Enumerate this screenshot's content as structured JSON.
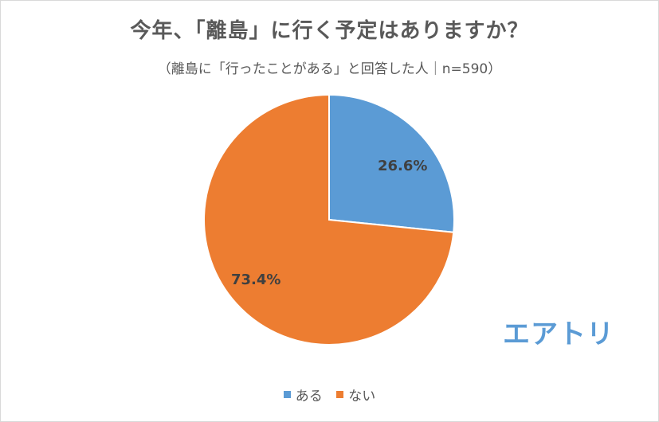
{
  "chart_data": {
    "type": "pie",
    "title": "今年、「離島」に行く予定はありますか？",
    "subtitle": "（離島に「行ったことがある」と回答した人｜n=590）",
    "categories": [
      "ある",
      "ない"
    ],
    "values": [
      26.6,
      73.4
    ],
    "labels": [
      "26.6%",
      "73.4%"
    ],
    "colors": [
      "#5b9bd5",
      "#ed7d31"
    ],
    "legend_position": "bottom",
    "start_angle": "12 o'clock, clockwise"
  },
  "logo": {
    "text": "エアトリ",
    "color": "#5b9bd5"
  },
  "legend": [
    {
      "label": "ある",
      "color": "#5b9bd5"
    },
    {
      "label": "ない",
      "color": "#ed7d31"
    }
  ]
}
